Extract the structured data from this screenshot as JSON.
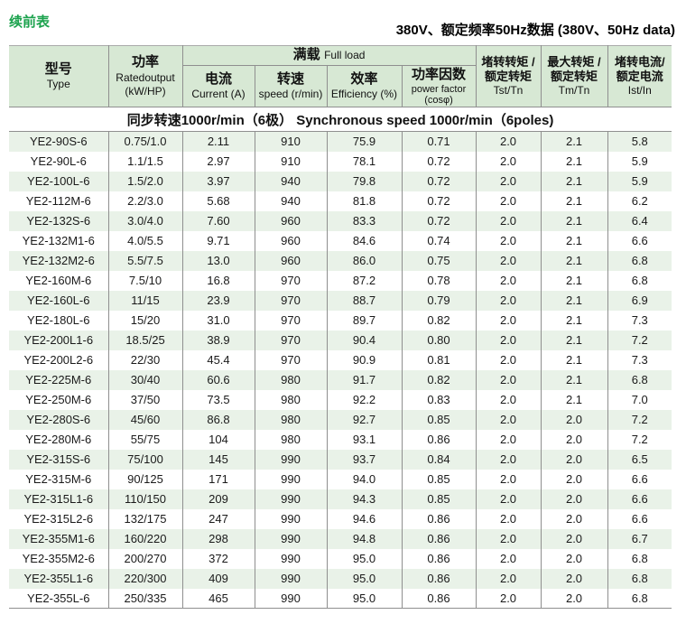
{
  "page": {
    "continued_label": "续前表",
    "title": "380V、额定频率50Hz数据 (380V、50Hz data)"
  },
  "colors": {
    "header_bg": "#d7e8d4",
    "row_alt_bg": "#e9f2e8",
    "line_mid": "#8f8f8f",
    "line_light": "#aaaaaa",
    "accent_green": "#1ba24d",
    "text": "#1a1a1a"
  },
  "table": {
    "header": {
      "type": {
        "zh": "型号",
        "en": "Type"
      },
      "power": {
        "zh": "功率",
        "en": "Ratedoutput",
        "unit": "(kW/HP)"
      },
      "full_load": {
        "zh": "满载",
        "en": "Full load"
      },
      "current": {
        "zh": "电流",
        "en": "Current (A)"
      },
      "speed": {
        "zh": "转速",
        "en": "speed (r/min)"
      },
      "efficiency": {
        "zh": "效率",
        "en": "Efficiency (%)"
      },
      "power_factor": {
        "zh": "功率因数",
        "en": "power factor",
        "unit": "(cosφ)"
      },
      "tst": {
        "zh_line1": "堵转转矩 /",
        "zh_line2": "额定转矩",
        "en": "Tst/Tn"
      },
      "tm": {
        "zh_line1": "最大转矩 /",
        "zh_line2": "额定转矩",
        "en": "Tm/Tn"
      },
      "ist": {
        "zh_line1": "堵转电流/",
        "zh_line2": "额定电流",
        "en": "Ist/In"
      }
    },
    "sync_row": "同步转速1000r/min（6极）  Synchronous speed 1000r/min（6poles)",
    "columns": [
      "model",
      "rated-output",
      "current",
      "speed",
      "efficiency",
      "power-factor",
      "tst-tn",
      "tm-tn",
      "ist-in"
    ],
    "rows": [
      [
        "YE2-90S-6",
        "0.75/1.0",
        "2.11",
        "910",
        "75.9",
        "0.71",
        "2.0",
        "2.1",
        "5.8"
      ],
      [
        "YE2-90L-6",
        "1.1/1.5",
        "2.97",
        "910",
        "78.1",
        "0.72",
        "2.0",
        "2.1",
        "5.9"
      ],
      [
        "YE2-100L-6",
        "1.5/2.0",
        "3.97",
        "940",
        "79.8",
        "0.72",
        "2.0",
        "2.1",
        "5.9"
      ],
      [
        "YE2-112M-6",
        "2.2/3.0",
        "5.68",
        "940",
        "81.8",
        "0.72",
        "2.0",
        "2.1",
        "6.2"
      ],
      [
        "YE2-132S-6",
        "3.0/4.0",
        "7.60",
        "960",
        "83.3",
        "0.72",
        "2.0",
        "2.1",
        "6.4"
      ],
      [
        "YE2-132M1-6",
        "4.0/5.5",
        "9.71",
        "960",
        "84.6",
        "0.74",
        "2.0",
        "2.1",
        "6.6"
      ],
      [
        "YE2-132M2-6",
        "5.5/7.5",
        "13.0",
        "960",
        "86.0",
        "0.75",
        "2.0",
        "2.1",
        "6.8"
      ],
      [
        "YE2-160M-6",
        "7.5/10",
        "16.8",
        "970",
        "87.2",
        "0.78",
        "2.0",
        "2.1",
        "6.8"
      ],
      [
        "YE2-160L-6",
        "11/15",
        "23.9",
        "970",
        "88.7",
        "0.79",
        "2.0",
        "2.1",
        "6.9"
      ],
      [
        "YE2-180L-6",
        "15/20",
        "31.0",
        "970",
        "89.7",
        "0.82",
        "2.0",
        "2.1",
        "7.3"
      ],
      [
        "YE2-200L1-6",
        "18.5/25",
        "38.9",
        "970",
        "90.4",
        "0.80",
        "2.0",
        "2.1",
        "7.2"
      ],
      [
        "YE2-200L2-6",
        "22/30",
        "45.4",
        "970",
        "90.9",
        "0.81",
        "2.0",
        "2.1",
        "7.3"
      ],
      [
        "YE2-225M-6",
        "30/40",
        "60.6",
        "980",
        "91.7",
        "0.82",
        "2.0",
        "2.1",
        "6.8"
      ],
      [
        "YE2-250M-6",
        "37/50",
        "73.5",
        "980",
        "92.2",
        "0.83",
        "2.0",
        "2.1",
        "7.0"
      ],
      [
        "YE2-280S-6",
        "45/60",
        "86.8",
        "980",
        "92.7",
        "0.85",
        "2.0",
        "2.0",
        "7.2"
      ],
      [
        "YE2-280M-6",
        "55/75",
        "104",
        "980",
        "93.1",
        "0.86",
        "2.0",
        "2.0",
        "7.2"
      ],
      [
        "YE2-315S-6",
        "75/100",
        "145",
        "990",
        "93.7",
        "0.84",
        "2.0",
        "2.0",
        "6.5"
      ],
      [
        "YE2-315M-6",
        "90/125",
        "171",
        "990",
        "94.0",
        "0.85",
        "2.0",
        "2.0",
        "6.6"
      ],
      [
        "YE2-315L1-6",
        "110/150",
        "209",
        "990",
        "94.3",
        "0.85",
        "2.0",
        "2.0",
        "6.6"
      ],
      [
        "YE2-315L2-6",
        "132/175",
        "247",
        "990",
        "94.6",
        "0.86",
        "2.0",
        "2.0",
        "6.6"
      ],
      [
        "YE2-355M1-6",
        "160/220",
        "298",
        "990",
        "94.8",
        "0.86",
        "2.0",
        "2.0",
        "6.7"
      ],
      [
        "YE2-355M2-6",
        "200/270",
        "372",
        "990",
        "95.0",
        "0.86",
        "2.0",
        "2.0",
        "6.8"
      ],
      [
        "YE2-355L1-6",
        "220/300",
        "409",
        "990",
        "95.0",
        "0.86",
        "2.0",
        "2.0",
        "6.8"
      ],
      [
        "YE2-355L-6",
        "250/335",
        "465",
        "990",
        "95.0",
        "0.86",
        "2.0",
        "2.0",
        "6.8"
      ]
    ]
  }
}
